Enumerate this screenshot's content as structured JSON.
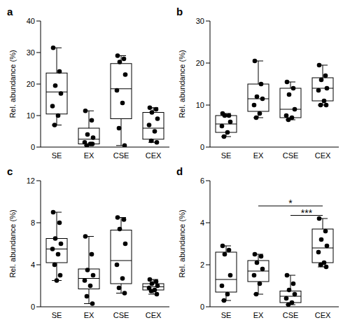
{
  "chart_data": [
    {
      "type": "box",
      "title": "a",
      "y_label": "Rel. abundance (%)",
      "categories": [
        "SE",
        "EX",
        "CSE",
        "CEX"
      ],
      "ylim": [
        0,
        40
      ],
      "yticks": [
        0,
        10,
        20,
        30,
        40
      ],
      "color": "#000000",
      "boxes": [
        {
          "min": 7,
          "q1": 10.5,
          "median": 17.5,
          "q3": 23.5,
          "max": 31.5
        },
        {
          "min": 0.5,
          "q1": 1,
          "median": 2.5,
          "q3": 6,
          "max": 11.5
        },
        {
          "min": 0.5,
          "q1": 9,
          "median": 18.5,
          "q3": 26.5,
          "max": 29
        },
        {
          "min": 1.5,
          "q1": 2.5,
          "median": 6,
          "q3": 11,
          "max": 12.5
        }
      ],
      "points": [
        [
          31.5,
          24,
          19.5,
          17,
          13,
          10,
          7
        ],
        [
          11.5,
          8.5,
          4,
          3,
          1.5,
          1,
          0.5,
          1
        ],
        [
          29,
          28,
          27,
          23,
          18,
          14,
          6,
          0.5
        ],
        [
          12.5,
          12,
          11,
          9,
          7,
          5,
          2,
          1.5
        ]
      ]
    },
    {
      "type": "box",
      "title": "b",
      "y_label": "Rel. abundance (%)",
      "categories": [
        "SE",
        "EX",
        "CSE",
        "CEX"
      ],
      "ylim": [
        0,
        30
      ],
      "yticks": [
        0,
        10,
        20,
        30
      ],
      "color": "#000000",
      "boxes": [
        {
          "min": 2.5,
          "q1": 3.5,
          "median": 5.5,
          "q3": 7.5,
          "max": 8
        },
        {
          "min": 7,
          "q1": 8.5,
          "median": 11.5,
          "q3": 15,
          "max": 20.5
        },
        {
          "min": 6.5,
          "q1": 7,
          "median": 9,
          "q3": 14,
          "max": 15.5
        },
        {
          "min": 10,
          "q1": 11,
          "median": 14,
          "q3": 16.5,
          "max": 19.5
        }
      ],
      "points": [
        [
          8,
          7.5,
          7.5,
          6,
          5,
          3.5,
          2.5
        ],
        [
          20.5,
          15,
          12,
          11.5,
          10,
          8,
          7
        ],
        [
          15.5,
          14,
          12.5,
          9,
          7.5,
          7,
          6.5
        ],
        [
          19.5,
          17,
          16,
          14,
          13.5,
          11,
          10,
          10
        ]
      ]
    },
    {
      "type": "box",
      "title": "c",
      "y_label": "Rel. abundance (%)",
      "categories": [
        "SE",
        "EX",
        "CSE",
        "CEX"
      ],
      "ylim": [
        0,
        12
      ],
      "yticks": [
        0,
        4,
        8,
        12
      ],
      "color": "#000000",
      "boxes": [
        {
          "min": 2.5,
          "q1": 4.2,
          "median": 5.5,
          "q3": 6.5,
          "max": 9
        },
        {
          "min": 0.3,
          "q1": 1.7,
          "median": 2.7,
          "q3": 3.6,
          "max": 6.7
        },
        {
          "min": 1.3,
          "q1": 2.2,
          "median": 4.4,
          "q3": 7.3,
          "max": 8.5
        },
        {
          "min": 1.2,
          "q1": 1.6,
          "median": 1.9,
          "q3": 2.2,
          "max": 2.6
        }
      ],
      "points": [
        [
          9,
          8,
          6.5,
          6,
          5.5,
          5,
          4,
          3,
          2.5
        ],
        [
          6.7,
          5,
          3.5,
          3,
          2.5,
          2,
          1,
          0.3
        ],
        [
          8.5,
          8.3,
          7.4,
          6,
          4,
          2.7,
          1.8,
          1.3
        ],
        [
          2.6,
          2.4,
          2.2,
          2,
          1.8,
          1.6,
          1.5,
          1.2
        ]
      ]
    },
    {
      "type": "box",
      "title": "d",
      "y_label": "Rel. abundance (%)",
      "categories": [
        "SE",
        "EX",
        "CSE",
        "CEX"
      ],
      "ylim": [
        0,
        6
      ],
      "yticks": [
        0,
        2,
        4,
        6
      ],
      "color": "#000000",
      "boxes": [
        {
          "min": 0.3,
          "q1": 0.7,
          "median": 1.3,
          "q3": 2.6,
          "max": 2.9
        },
        {
          "min": 0.6,
          "q1": 1.2,
          "median": 1.7,
          "q3": 2.2,
          "max": 2.5
        },
        {
          "min": 0.1,
          "q1": 0.2,
          "median": 0.5,
          "q3": 0.75,
          "max": 1.5
        },
        {
          "min": 1.9,
          "q1": 2.1,
          "median": 2.8,
          "q3": 3.7,
          "max": 4.2
        }
      ],
      "points": [
        [
          2.9,
          2.7,
          2.5,
          1.5,
          1,
          0.6,
          0.3
        ],
        [
          2.5,
          2.4,
          2.1,
          1.8,
          1.5,
          1.1,
          0.6
        ],
        [
          1.5,
          1.1,
          0.8,
          0.6,
          0.4,
          0.2,
          0.1
        ],
        [
          4.2,
          3.6,
          3.2,
          2.9,
          2.6,
          2.1,
          2,
          1.9
        ]
      ],
      "annotations": [
        {
          "from": "EX",
          "to": "CEX",
          "y": 4.8,
          "text": "*"
        },
        {
          "from": "CSE",
          "to": "CEX",
          "y": 4.35,
          "text": "***"
        }
      ]
    }
  ]
}
